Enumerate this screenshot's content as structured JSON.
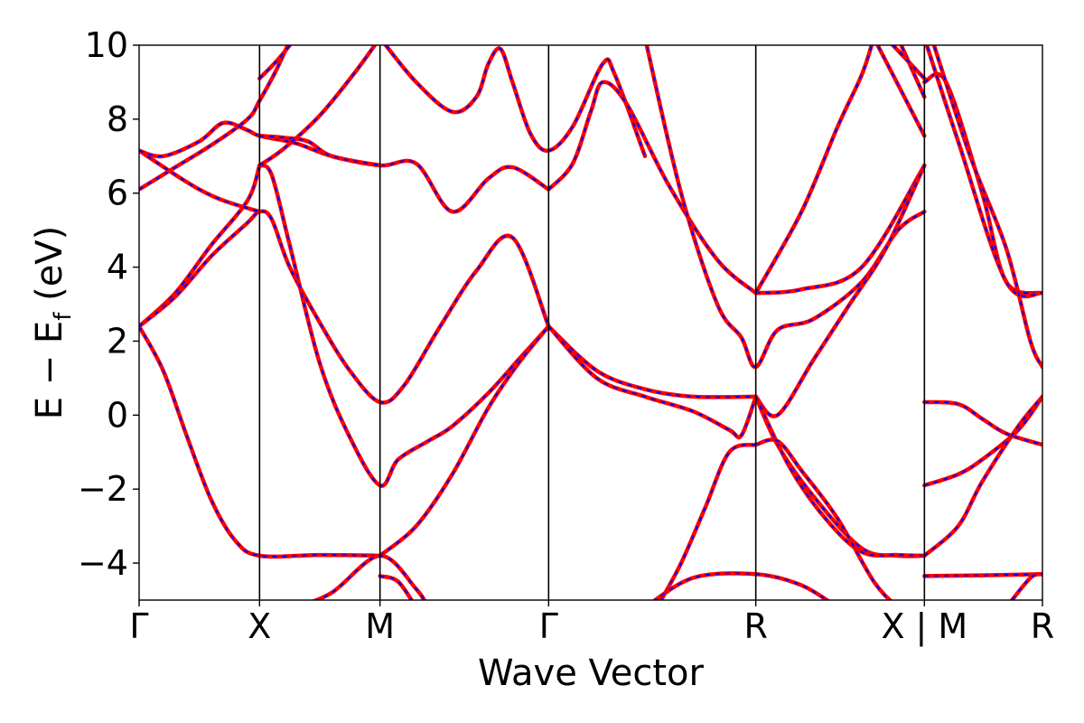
{
  "chart_data": {
    "type": "line",
    "title": "",
    "xlabel": "Wave Vector",
    "ylabel": "E − E_f (eV)",
    "ylabel_parts": [
      "E − E",
      "f",
      " (eV)"
    ],
    "ylim": [
      -5,
      10
    ],
    "yticks": [
      -4,
      -2,
      0,
      2,
      4,
      6,
      8,
      10
    ],
    "ytick_labels": [
      "−4",
      "−2",
      "0",
      "2",
      "4",
      "6",
      "8",
      "10"
    ],
    "xlim": [
      0,
      7.5
    ],
    "kpoints": [
      {
        "x": 0,
        "label": "Γ"
      },
      {
        "x": 1,
        "label": "X"
      },
      {
        "x": 2,
        "label": "M"
      },
      {
        "x": 3.4,
        "label": "Γ"
      },
      {
        "x": 5.12,
        "label": "R"
      },
      {
        "x": 6.52,
        "label": "X | M"
      },
      {
        "x": 7.5,
        "label": "R"
      }
    ],
    "grid": false,
    "legend": "none",
    "colors": {
      "solid": "#ff0000",
      "dashed": "#0000ff",
      "axes": "#000000"
    },
    "series": [
      {
        "points": [
          [
            0,
            2.4
          ],
          [
            0.2,
            1.2
          ],
          [
            0.4,
            -0.6
          ],
          [
            0.6,
            -2.3
          ],
          [
            0.8,
            -3.4
          ],
          [
            1,
            -3.8
          ],
          [
            1.5,
            -3.78
          ],
          [
            2,
            -3.8
          ]
        ]
      },
      {
        "points": [
          [
            0,
            2.4
          ],
          [
            0.3,
            3.3
          ],
          [
            0.6,
            4.6
          ],
          [
            0.9,
            5.8
          ],
          [
            1,
            6.75
          ]
        ]
      },
      {
        "points": [
          [
            0,
            2.4
          ],
          [
            0.3,
            3.2
          ],
          [
            0.6,
            4.3
          ],
          [
            0.9,
            5.2
          ],
          [
            1,
            5.5
          ],
          [
            1.1,
            5.3
          ],
          [
            1.25,
            4.0
          ],
          [
            1.5,
            2.5
          ],
          [
            1.75,
            1.2
          ],
          [
            2,
            0.35
          ],
          [
            2.2,
            0.8
          ],
          [
            2.5,
            2.4
          ],
          [
            2.8,
            3.9
          ],
          [
            3.1,
            4.8
          ],
          [
            3.4,
            2.4
          ]
        ]
      },
      {
        "points": [
          [
            1,
            6.75
          ],
          [
            1.1,
            6.5
          ],
          [
            1.25,
            4.6
          ],
          [
            1.5,
            1.4
          ],
          [
            1.75,
            -0.6
          ],
          [
            2,
            -1.9
          ],
          [
            2.15,
            -1.2
          ],
          [
            2.4,
            -0.7
          ],
          [
            2.6,
            -0.3
          ],
          [
            2.9,
            0.6
          ],
          [
            3.15,
            1.5
          ],
          [
            3.4,
            2.4
          ]
        ]
      },
      {
        "points": [
          [
            2,
            -3.8
          ],
          [
            2.3,
            -3.0
          ],
          [
            2.6,
            -1.6
          ],
          [
            2.9,
            0.2
          ],
          [
            3.15,
            1.4
          ],
          [
            3.4,
            2.4
          ]
        ]
      },
      {
        "points": [
          [
            0,
            6.1
          ],
          [
            0.3,
            6.7
          ],
          [
            0.6,
            7.3
          ],
          [
            0.9,
            8.0
          ],
          [
            1,
            8.5
          ],
          [
            1.15,
            9.4
          ],
          [
            1.3,
            10.5
          ]
        ]
      },
      {
        "points": [
          [
            0,
            7.15
          ],
          [
            0.3,
            6.5
          ],
          [
            0.5,
            6.1
          ],
          [
            0.7,
            5.8
          ],
          [
            1,
            5.5
          ]
        ]
      },
      {
        "points": [
          [
            0,
            7.15
          ],
          [
            0.2,
            7.0
          ],
          [
            0.5,
            7.4
          ],
          [
            0.7,
            7.9
          ],
          [
            0.9,
            7.7
          ],
          [
            1,
            7.55
          ],
          [
            1.3,
            7.35
          ],
          [
            1.6,
            7.0
          ],
          [
            2,
            6.75
          ],
          [
            2.3,
            6.8
          ],
          [
            2.6,
            5.5
          ],
          [
            2.9,
            6.4
          ],
          [
            3.1,
            6.7
          ],
          [
            3.4,
            6.1
          ]
        ]
      },
      {
        "points": [
          [
            1,
            7.55
          ],
          [
            1.2,
            7.5
          ],
          [
            1.4,
            7.4
          ],
          [
            1.6,
            7.0
          ],
          [
            2,
            6.75
          ]
        ]
      },
      {
        "points": [
          [
            1,
            6.75
          ],
          [
            1.2,
            7.2
          ],
          [
            1.5,
            8.1
          ],
          [
            1.8,
            9.3
          ],
          [
            2,
            10.2
          ]
        ]
      },
      {
        "points": [
          [
            1,
            9.1
          ],
          [
            1.15,
            9.6
          ],
          [
            1.3,
            10.2
          ]
        ]
      },
      {
        "points": [
          [
            2,
            10.2
          ],
          [
            2.3,
            9.0
          ],
          [
            2.6,
            8.2
          ],
          [
            2.8,
            8.6
          ],
          [
            2.9,
            9.5
          ],
          [
            3.0,
            9.9
          ],
          [
            3.1,
            9.0
          ],
          [
            3.25,
            7.6
          ],
          [
            3.4,
            7.15
          ],
          [
            3.6,
            7.8
          ],
          [
            3.85,
            9.5
          ],
          [
            3.95,
            9.2
          ],
          [
            4.2,
            7.0
          ]
        ]
      },
      {
        "points": [
          [
            3.4,
            6.1
          ],
          [
            3.6,
            6.8
          ],
          [
            3.75,
            8.2
          ],
          [
            3.85,
            9.0
          ],
          [
            4.05,
            8.4
          ],
          [
            4.4,
            6.2
          ],
          [
            4.8,
            4.2
          ],
          [
            5.12,
            3.3
          ]
        ]
      },
      {
        "points": [
          [
            3.4,
            2.4
          ],
          [
            3.8,
            1.2
          ],
          [
            4.2,
            0.7
          ],
          [
            4.6,
            0.5
          ],
          [
            5.12,
            0.5
          ]
        ]
      },
      {
        "points": [
          [
            3.4,
            2.4
          ],
          [
            3.8,
            1.0
          ],
          [
            4.2,
            0.5
          ],
          [
            4.6,
            0.1
          ],
          [
            4.9,
            -0.4
          ],
          [
            5.0,
            -0.55
          ],
          [
            5.12,
            0.5
          ]
        ]
      },
      {
        "points": [
          [
            4.2,
            10.2
          ],
          [
            4.5,
            6.0
          ],
          [
            4.8,
            3.0
          ],
          [
            5.0,
            2.1
          ],
          [
            5.12,
            1.3
          ],
          [
            5.3,
            2.3
          ],
          [
            5.6,
            2.6
          ],
          [
            6.0,
            3.6
          ],
          [
            6.3,
            5.0
          ],
          [
            6.52,
            5.5
          ]
        ]
      },
      {
        "points": [
          [
            5.12,
            3.3
          ],
          [
            5.5,
            3.4
          ],
          [
            6.0,
            4.0
          ],
          [
            6.52,
            6.75
          ]
        ]
      },
      {
        "points": [
          [
            5.12,
            0.5
          ],
          [
            5.3,
            0.0
          ],
          [
            5.6,
            1.5
          ],
          [
            5.9,
            3.0
          ],
          [
            6.2,
            4.5
          ],
          [
            6.52,
            6.75
          ]
        ]
      },
      {
        "points": [
          [
            5.12,
            3.3
          ],
          [
            5.5,
            5.5
          ],
          [
            5.8,
            7.8
          ],
          [
            6.0,
            9.2
          ],
          [
            6.1,
            10.2
          ]
        ]
      },
      {
        "points": [
          [
            5.12,
            0.5
          ],
          [
            5.3,
            -0.8
          ],
          [
            5.6,
            -2.2
          ],
          [
            6.0,
            -3.6
          ],
          [
            6.3,
            -3.8
          ],
          [
            6.52,
            -3.8
          ]
        ]
      },
      {
        "points": [
          [
            5.12,
            0.5
          ],
          [
            5.4,
            -1.4
          ],
          [
            5.7,
            -2.8
          ],
          [
            6.0,
            -3.7
          ],
          [
            6.3,
            -3.78
          ],
          [
            6.52,
            -3.8
          ]
        ]
      },
      {
        "points": [
          [
            5.12,
            -0.8
          ],
          [
            5.3,
            -0.7
          ],
          [
            5.5,
            -1.5
          ],
          [
            5.8,
            -2.8
          ],
          [
            6.1,
            -4.5
          ],
          [
            6.3,
            -5.2
          ]
        ]
      },
      {
        "points": [
          [
            5.12,
            -0.8
          ],
          [
            4.9,
            -1.0
          ],
          [
            4.7,
            -2.5
          ],
          [
            4.5,
            -4.0
          ],
          [
            4.3,
            -5.2
          ]
        ]
      },
      {
        "points": [
          [
            4.2,
            -5.2
          ],
          [
            4.6,
            -4.4
          ],
          [
            5.12,
            -4.3
          ],
          [
            5.5,
            -4.6
          ],
          [
            5.8,
            -5.2
          ]
        ]
      },
      {
        "points": [
          [
            6.52,
            0.35
          ],
          [
            6.8,
            0.3
          ],
          [
            7.0,
            -0.1
          ],
          [
            7.2,
            -0.5
          ],
          [
            7.5,
            -0.8
          ]
        ]
      },
      {
        "points": [
          [
            6.52,
            -1.9
          ],
          [
            6.8,
            -1.6
          ],
          [
            7.0,
            -1.2
          ],
          [
            7.3,
            -0.4
          ],
          [
            7.5,
            0.5
          ]
        ]
      },
      {
        "points": [
          [
            6.52,
            -3.8
          ],
          [
            6.8,
            -3.0
          ],
          [
            7.0,
            -1.8
          ],
          [
            7.3,
            -0.3
          ],
          [
            7.5,
            0.5
          ]
        ]
      },
      {
        "points": [
          [
            6.52,
            -4.35
          ],
          [
            7.0,
            -4.33
          ],
          [
            7.5,
            -4.3
          ]
        ]
      },
      {
        "points": [
          [
            7.2,
            -5.2
          ],
          [
            7.4,
            -4.4
          ],
          [
            7.5,
            -4.3
          ]
        ]
      },
      {
        "points": [
          [
            6.52,
            9.0
          ],
          [
            6.7,
            9.0
          ],
          [
            7.0,
            6.0
          ],
          [
            7.2,
            3.6
          ],
          [
            7.5,
            3.3
          ]
        ]
      },
      {
        "points": [
          [
            6.52,
            10.2
          ],
          [
            6.8,
            7.4
          ],
          [
            7.2,
            3.6
          ],
          [
            7.5,
            3.3
          ]
        ]
      },
      {
        "points": [
          [
            6.58,
            10.2
          ],
          [
            6.9,
            7.0
          ],
          [
            7.2,
            4.5
          ],
          [
            7.4,
            2.0
          ],
          [
            7.5,
            1.3
          ]
        ]
      },
      {
        "points": [
          [
            6.3,
            10.2
          ],
          [
            6.52,
            8.6
          ]
        ]
      },
      {
        "points": [
          [
            6.2,
            10.2
          ],
          [
            6.52,
            9.1
          ]
        ]
      },
      {
        "points": [
          [
            6.1,
            10.2
          ],
          [
            6.52,
            7.55
          ]
        ]
      },
      {
        "points": [
          [
            2,
            -4.35
          ],
          [
            2.15,
            -4.5
          ],
          [
            2.3,
            -5.2
          ]
        ]
      },
      {
        "points": [
          [
            1.3,
            -5.2
          ],
          [
            1.6,
            -4.8
          ],
          [
            2,
            -3.8
          ],
          [
            2.3,
            -4.7
          ],
          [
            2.4,
            -5.2
          ]
        ]
      }
    ]
  }
}
